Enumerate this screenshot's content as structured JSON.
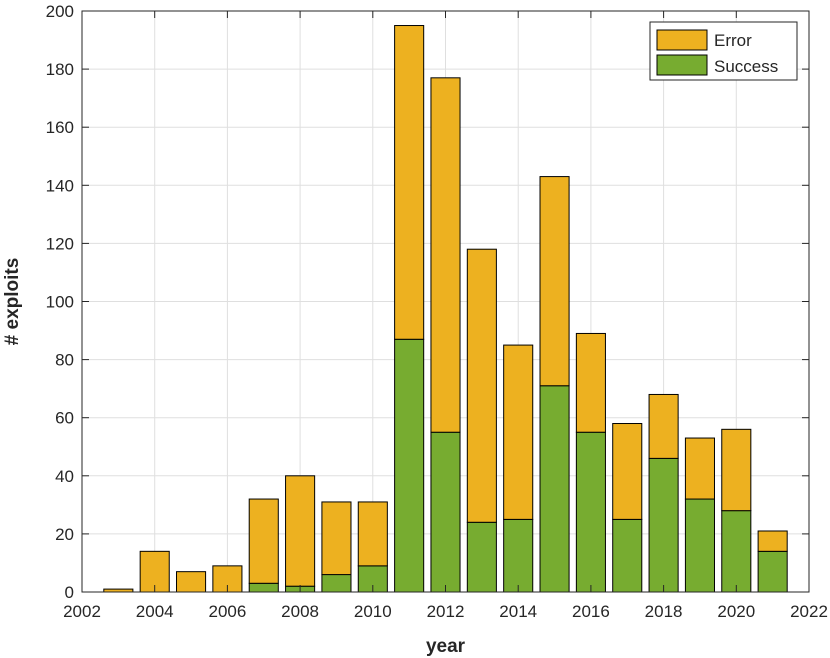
{
  "chart_data": {
    "type": "bar",
    "stacked": true,
    "xlabel": "year",
    "ylabel": "# exploits",
    "xlim": [
      2002,
      2022
    ],
    "ylim": [
      0,
      200
    ],
    "xticks": [
      2002,
      2004,
      2006,
      2008,
      2010,
      2012,
      2014,
      2016,
      2018,
      2020,
      2022
    ],
    "yticks": [
      0,
      20,
      40,
      60,
      80,
      100,
      120,
      140,
      160,
      180,
      200
    ],
    "grid": true,
    "legend_position": "top-right",
    "x": [
      2003,
      2004,
      2005,
      2006,
      2007,
      2008,
      2009,
      2010,
      2011,
      2012,
      2013,
      2014,
      2015,
      2016,
      2017,
      2018,
      2019,
      2020,
      2021
    ],
    "series": [
      {
        "name": "Success",
        "color": "#77ac30",
        "values": [
          0,
          0,
          0,
          0,
          3,
          2,
          6,
          9,
          87,
          55,
          24,
          25,
          71,
          55,
          25,
          46,
          32,
          28,
          14
        ]
      },
      {
        "name": "Error",
        "color": "#edb120",
        "values": [
          1,
          14,
          7,
          9,
          29,
          38,
          25,
          22,
          108,
          122,
          94,
          60,
          72,
          34,
          33,
          22,
          21,
          28,
          7
        ]
      }
    ],
    "legend": [
      "Error",
      "Success"
    ]
  }
}
